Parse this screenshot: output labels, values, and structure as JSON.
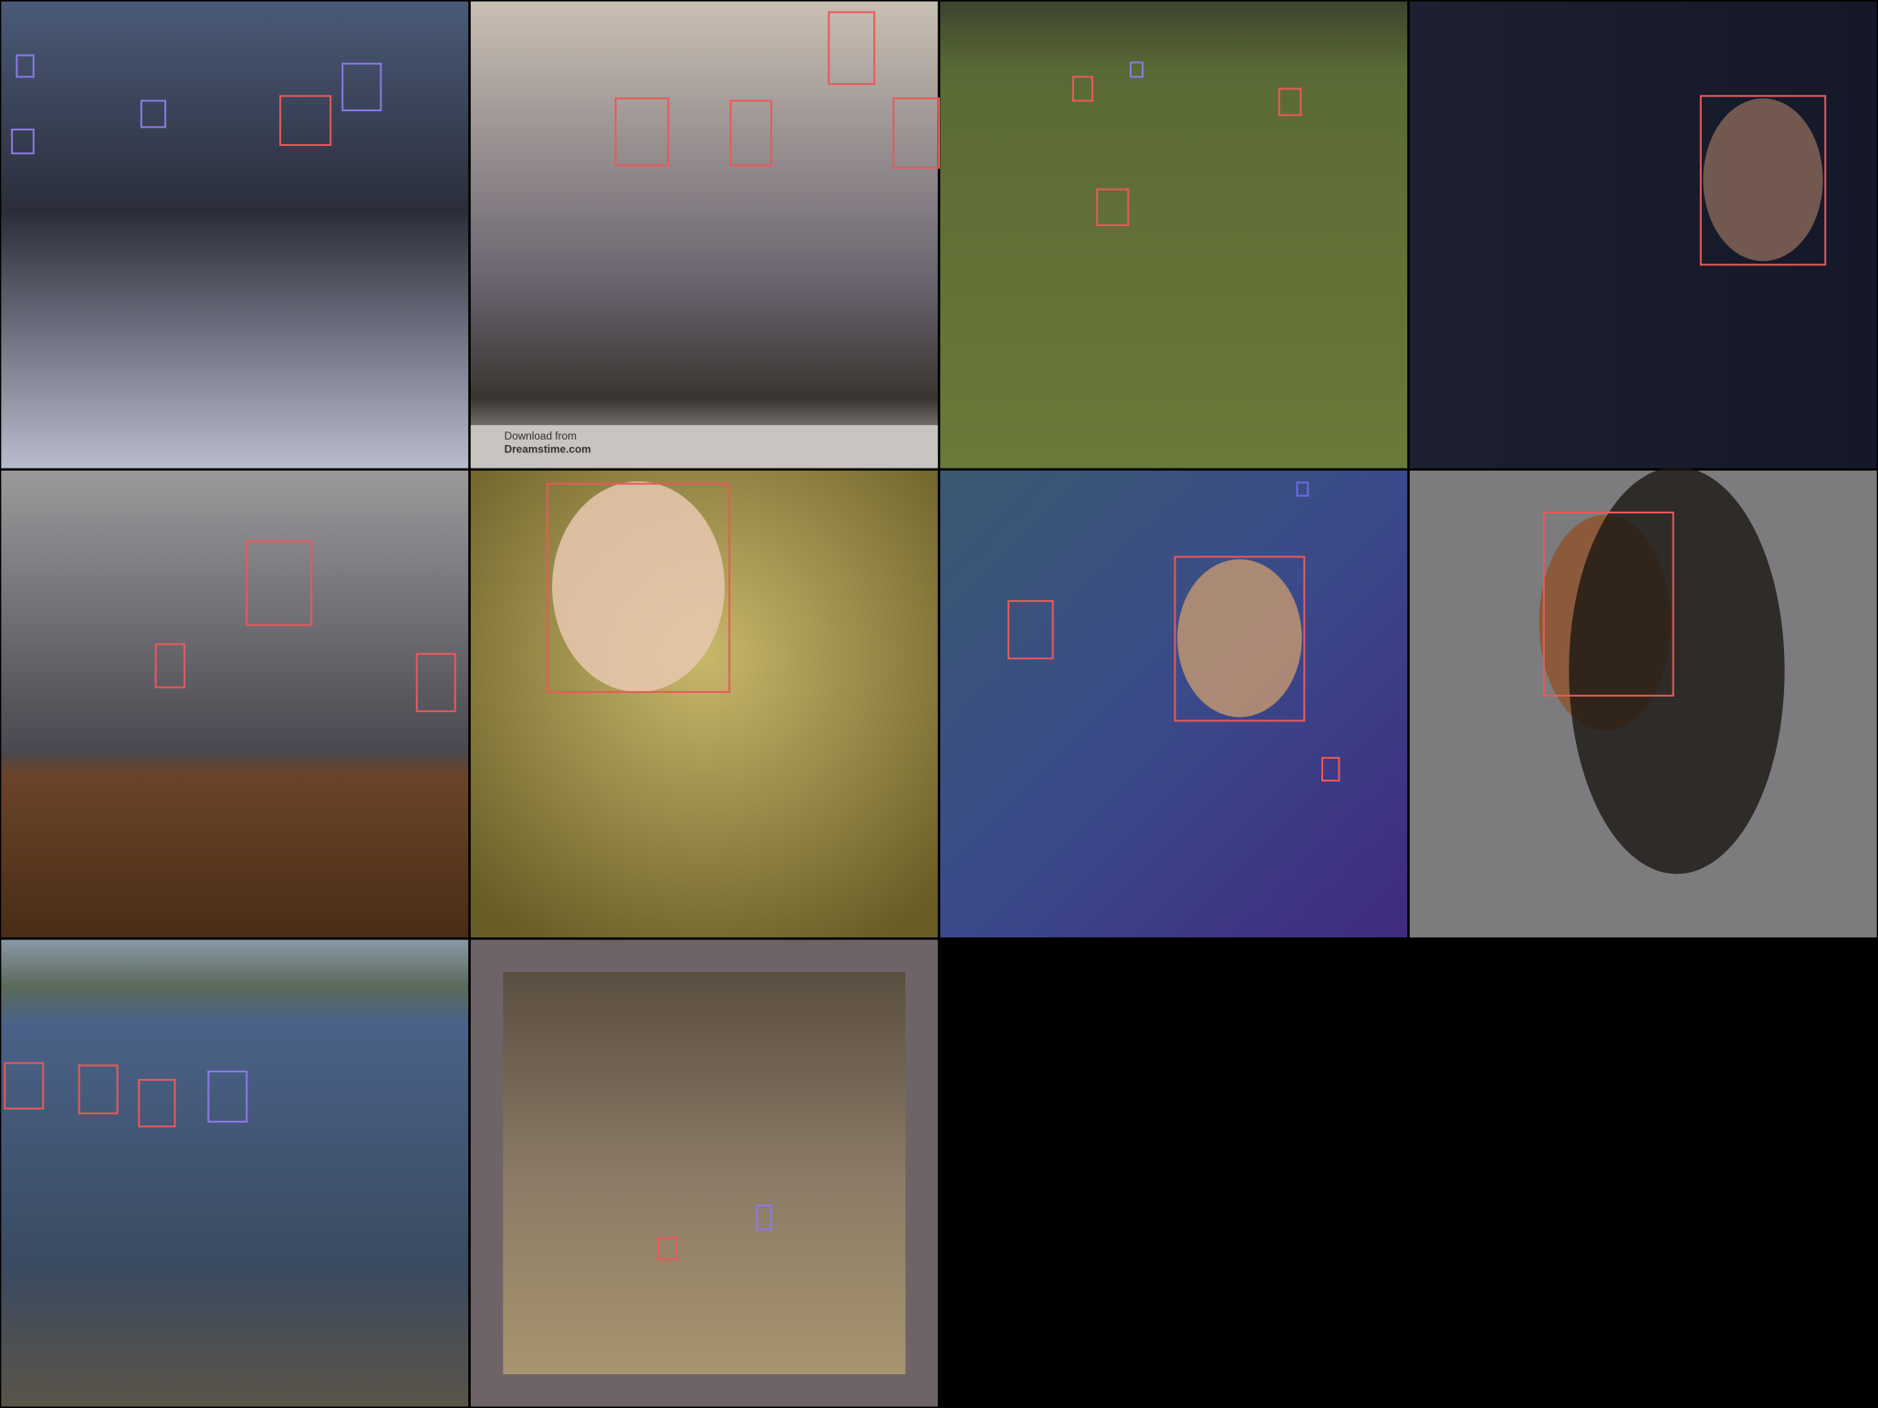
{
  "watermark": {
    "line1": "Download from",
    "line2": "Dreamstime.com"
  }
}
